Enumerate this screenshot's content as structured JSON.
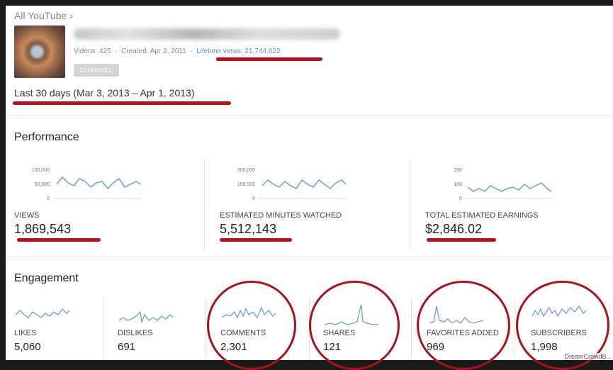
{
  "breadcrumb": "All YouTube ›",
  "channel": {
    "videos": "Videos: 425",
    "created": "Created: Apr 2, 2011",
    "lifetime_views": "Lifetime views: 21,744,622",
    "sep": "-",
    "button_label": "CHANNEL"
  },
  "date_range": "Last 30 days (Mar 3, 2013 – Apr 1, 2013)",
  "performance": {
    "title": "Performance",
    "metrics": [
      {
        "label": "VIEWS",
        "value": "1,869,543",
        "ticks": [
          "100,000",
          "50,000",
          "0"
        ]
      },
      {
        "label": "ESTIMATED MINUTES WATCHED",
        "value": "5,512,143",
        "ticks": [
          "300,000",
          "150,000",
          "0"
        ]
      },
      {
        "label": "TOTAL ESTIMATED EARNINGS",
        "value": "$2,846.02",
        "ticks": [
          "200",
          "100",
          "0"
        ]
      }
    ]
  },
  "engagement": {
    "title": "Engagement",
    "metrics": [
      {
        "label": "LIKES",
        "value": "5,060"
      },
      {
        "label": "DISLIKES",
        "value": "691"
      },
      {
        "label": "COMMENTS",
        "value": "2,301"
      },
      {
        "label": "SHARES",
        "value": "121"
      },
      {
        "label": "FAVORITES ADDED",
        "value": "969"
      },
      {
        "label": "SUBSCRIBERS",
        "value": "1,998"
      }
    ]
  },
  "colors": {
    "annotation": "#b3121c",
    "sparkline": "#6f9fcf"
  },
  "watermark": "DreamCrowdB..."
}
